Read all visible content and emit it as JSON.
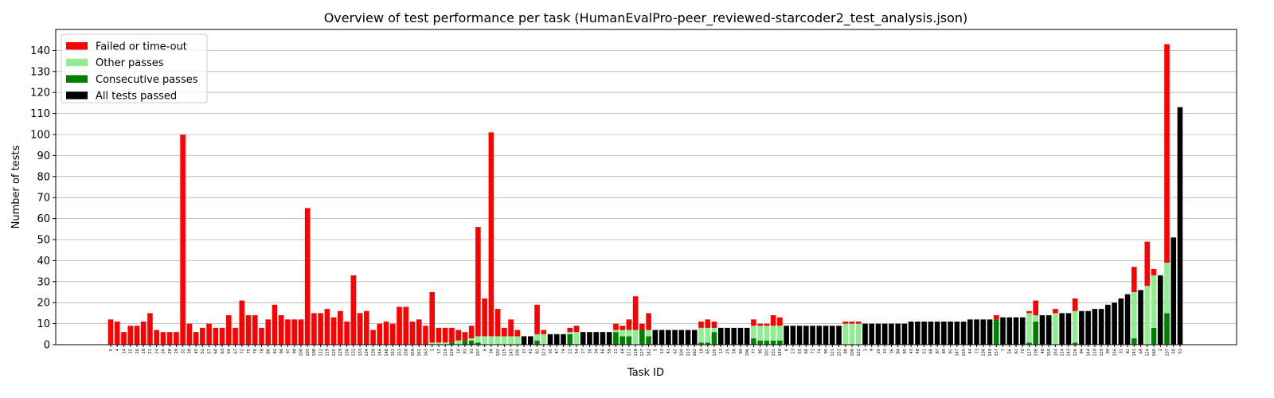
{
  "chart_data": {
    "type": "bar",
    "stacked": true,
    "title": "Overview of test performance per task (HumanEvalPro-peer_reviewed-starcoder2_test_analysis.json)",
    "x_label": "Task ID",
    "y_label": "Number of tests",
    "categories": [
      "0",
      "4",
      "14",
      "15",
      "16",
      "18",
      "21",
      "24",
      "26",
      "28",
      "29",
      "32",
      "39",
      "45",
      "52",
      "57",
      "60",
      "63",
      "64",
      "67",
      "72",
      "75",
      "76",
      "78",
      "86",
      "91",
      "96",
      "97",
      "98",
      "100",
      "103",
      "108",
      "112",
      "119",
      "125",
      "129",
      "130",
      "132",
      "133",
      "134",
      "139",
      "146",
      "148",
      "152",
      "153",
      "158",
      "159",
      "161",
      "163",
      "1",
      "17",
      "116",
      "128",
      "10",
      "83",
      "93",
      "107",
      "6",
      "38",
      "102",
      "115",
      "145",
      "105",
      "37",
      "42",
      "81",
      "123",
      "35",
      "47",
      "79",
      "22",
      "54",
      "27",
      "30",
      "34",
      "46",
      "59",
      "11",
      "49",
      "111",
      "118",
      "127",
      "142",
      "5",
      "12",
      "41",
      "62",
      "104",
      "113",
      "162",
      "19",
      "65",
      "135",
      "13",
      "25",
      "58",
      "80",
      "106",
      "77",
      "95",
      "101",
      "131",
      "140",
      "8",
      "23",
      "55",
      "66",
      "71",
      "74",
      "90",
      "121",
      "151",
      "88",
      "109",
      "122",
      "3",
      "9",
      "20",
      "33",
      "36",
      "84",
      "85",
      "43",
      "48",
      "51",
      "68",
      "87",
      "89",
      "92",
      "147",
      "155",
      "44",
      "73",
      "136",
      "149",
      "157",
      "7",
      "56",
      "61",
      "70",
      "117",
      "138",
      "40",
      "150",
      "154",
      "114",
      "143",
      "126",
      "94",
      "144",
      "110",
      "120",
      "99",
      "156",
      "31",
      "82",
      "141",
      "69",
      "124",
      "160",
      "2",
      "137",
      "50",
      "53"
    ],
    "series": [
      {
        "name": "Failed or time-out",
        "color": "#ff0000",
        "values": [
          12,
          11,
          6,
          9,
          9,
          11,
          15,
          7,
          6,
          6,
          6,
          100,
          10,
          6,
          8,
          10,
          8,
          8,
          14,
          8,
          21,
          14,
          14,
          8,
          12,
          19,
          14,
          12,
          12,
          12,
          65,
          15,
          15,
          17,
          13,
          16,
          11,
          33,
          15,
          16,
          7,
          10,
          11,
          10,
          18,
          18,
          11,
          12,
          9,
          24,
          7,
          7,
          7,
          5,
          4,
          6,
          52,
          18,
          97,
          13,
          4,
          8,
          3,
          0,
          0,
          14,
          2,
          0,
          0,
          0,
          2,
          3,
          0,
          0,
          0,
          0,
          0,
          3,
          2,
          5,
          16,
          3,
          8,
          0,
          0,
          0,
          0,
          0,
          0,
          0,
          3,
          4,
          3,
          0,
          0,
          0,
          0,
          0,
          3,
          1,
          1,
          5,
          4,
          0,
          0,
          0,
          0,
          0,
          0,
          0,
          0,
          0,
          1,
          1,
          1,
          0,
          0,
          0,
          0,
          0,
          0,
          0,
          0,
          0,
          0,
          0,
          0,
          0,
          0,
          0,
          0,
          0,
          0,
          0,
          0,
          2,
          0,
          0,
          0,
          0,
          1,
          7,
          0,
          0,
          2,
          0,
          0,
          6,
          0,
          0,
          0,
          0,
          0,
          0,
          0,
          0,
          12,
          0,
          21,
          3,
          0,
          104,
          0,
          0
        ]
      },
      {
        "name": "Other passes",
        "color": "#90ee90",
        "values": [
          0,
          0,
          0,
          0,
          0,
          0,
          0,
          0,
          0,
          0,
          0,
          0,
          0,
          0,
          0,
          0,
          0,
          0,
          0,
          0,
          0,
          0,
          0,
          0,
          0,
          0,
          0,
          0,
          0,
          0,
          0,
          0,
          0,
          0,
          0,
          0,
          0,
          0,
          0,
          0,
          0,
          0,
          0,
          0,
          0,
          0,
          0,
          0,
          0,
          1,
          1,
          1,
          0,
          2,
          0,
          1,
          3,
          4,
          4,
          4,
          4,
          4,
          4,
          0,
          0,
          3,
          5,
          0,
          0,
          0,
          1,
          6,
          0,
          0,
          0,
          0,
          0,
          1,
          3,
          3,
          7,
          0,
          3,
          0,
          0,
          0,
          0,
          0,
          0,
          0,
          7,
          7,
          2,
          0,
          0,
          0,
          0,
          0,
          6,
          7,
          7,
          7,
          7,
          0,
          0,
          0,
          0,
          0,
          0,
          0,
          0,
          0,
          10,
          10,
          10,
          0,
          0,
          0,
          0,
          0,
          0,
          0,
          0,
          0,
          0,
          0,
          0,
          0,
          0,
          0,
          0,
          0,
          0,
          0,
          0,
          0,
          0,
          0,
          0,
          0,
          14,
          3,
          0,
          0,
          15,
          0,
          0,
          15,
          0,
          0,
          0,
          0,
          0,
          0,
          0,
          0,
          22,
          0,
          28,
          25,
          0,
          24,
          0,
          0
        ]
      },
      {
        "name": "Consecutive passes",
        "color": "#008000",
        "values": [
          0,
          0,
          0,
          0,
          0,
          0,
          0,
          0,
          0,
          0,
          0,
          0,
          0,
          0,
          0,
          0,
          0,
          0,
          0,
          0,
          0,
          0,
          0,
          0,
          0,
          0,
          0,
          0,
          0,
          0,
          0,
          0,
          0,
          0,
          0,
          0,
          0,
          0,
          0,
          0,
          0,
          0,
          0,
          0,
          0,
          0,
          0,
          0,
          0,
          0,
          0,
          0,
          1,
          0,
          2,
          2,
          1,
          0,
          0,
          0,
          0,
          0,
          0,
          0,
          0,
          2,
          0,
          0,
          0,
          0,
          5,
          0,
          0,
          0,
          0,
          0,
          0,
          6,
          4,
          4,
          0,
          7,
          4,
          0,
          0,
          0,
          0,
          0,
          0,
          0,
          1,
          1,
          6,
          0,
          0,
          0,
          0,
          0,
          3,
          2,
          2,
          2,
          2,
          0,
          0,
          0,
          0,
          0,
          0,
          0,
          0,
          0,
          0,
          0,
          0,
          0,
          0,
          0,
          0,
          0,
          0,
          0,
          0,
          0,
          0,
          0,
          0,
          0,
          0,
          0,
          0,
          0,
          0,
          0,
          0,
          12,
          0,
          0,
          0,
          0,
          1,
          11,
          0,
          0,
          0,
          0,
          0,
          1,
          0,
          0,
          0,
          0,
          0,
          0,
          0,
          0,
          3,
          0,
          0,
          8,
          0,
          15,
          0,
          0
        ]
      },
      {
        "name": "All tests passed",
        "color": "#000000",
        "values": [
          0,
          0,
          0,
          0,
          0,
          0,
          0,
          0,
          0,
          0,
          0,
          0,
          0,
          0,
          0,
          0,
          0,
          0,
          0,
          0,
          0,
          0,
          0,
          0,
          0,
          0,
          0,
          0,
          0,
          0,
          0,
          0,
          0,
          0,
          0,
          0,
          0,
          0,
          0,
          0,
          0,
          0,
          0,
          0,
          0,
          0,
          0,
          0,
          0,
          0,
          0,
          0,
          0,
          0,
          0,
          0,
          0,
          0,
          0,
          0,
          0,
          0,
          0,
          4,
          4,
          0,
          0,
          5,
          5,
          5,
          0,
          0,
          6,
          6,
          6,
          6,
          6,
          0,
          0,
          0,
          0,
          0,
          0,
          7,
          7,
          7,
          7,
          7,
          7,
          7,
          0,
          0,
          0,
          8,
          8,
          8,
          8,
          8,
          0,
          0,
          0,
          0,
          0,
          9,
          9,
          9,
          9,
          9,
          9,
          9,
          9,
          9,
          0,
          0,
          0,
          10,
          10,
          10,
          10,
          10,
          10,
          10,
          11,
          11,
          11,
          11,
          11,
          11,
          11,
          11,
          11,
          12,
          12,
          12,
          12,
          0,
          13,
          13,
          13,
          13,
          0,
          0,
          14,
          14,
          0,
          15,
          15,
          0,
          16,
          16,
          17,
          17,
          19,
          20,
          22,
          24,
          0,
          26,
          0,
          0,
          33,
          0,
          51,
          113
        ]
      }
    ],
    "ylim": [
      0,
      150
    ],
    "yticks": [
      0,
      10,
      20,
      30,
      40,
      50,
      60,
      70,
      80,
      90,
      100,
      110,
      120,
      130,
      140
    ],
    "grid": true,
    "legend": "upper left"
  }
}
